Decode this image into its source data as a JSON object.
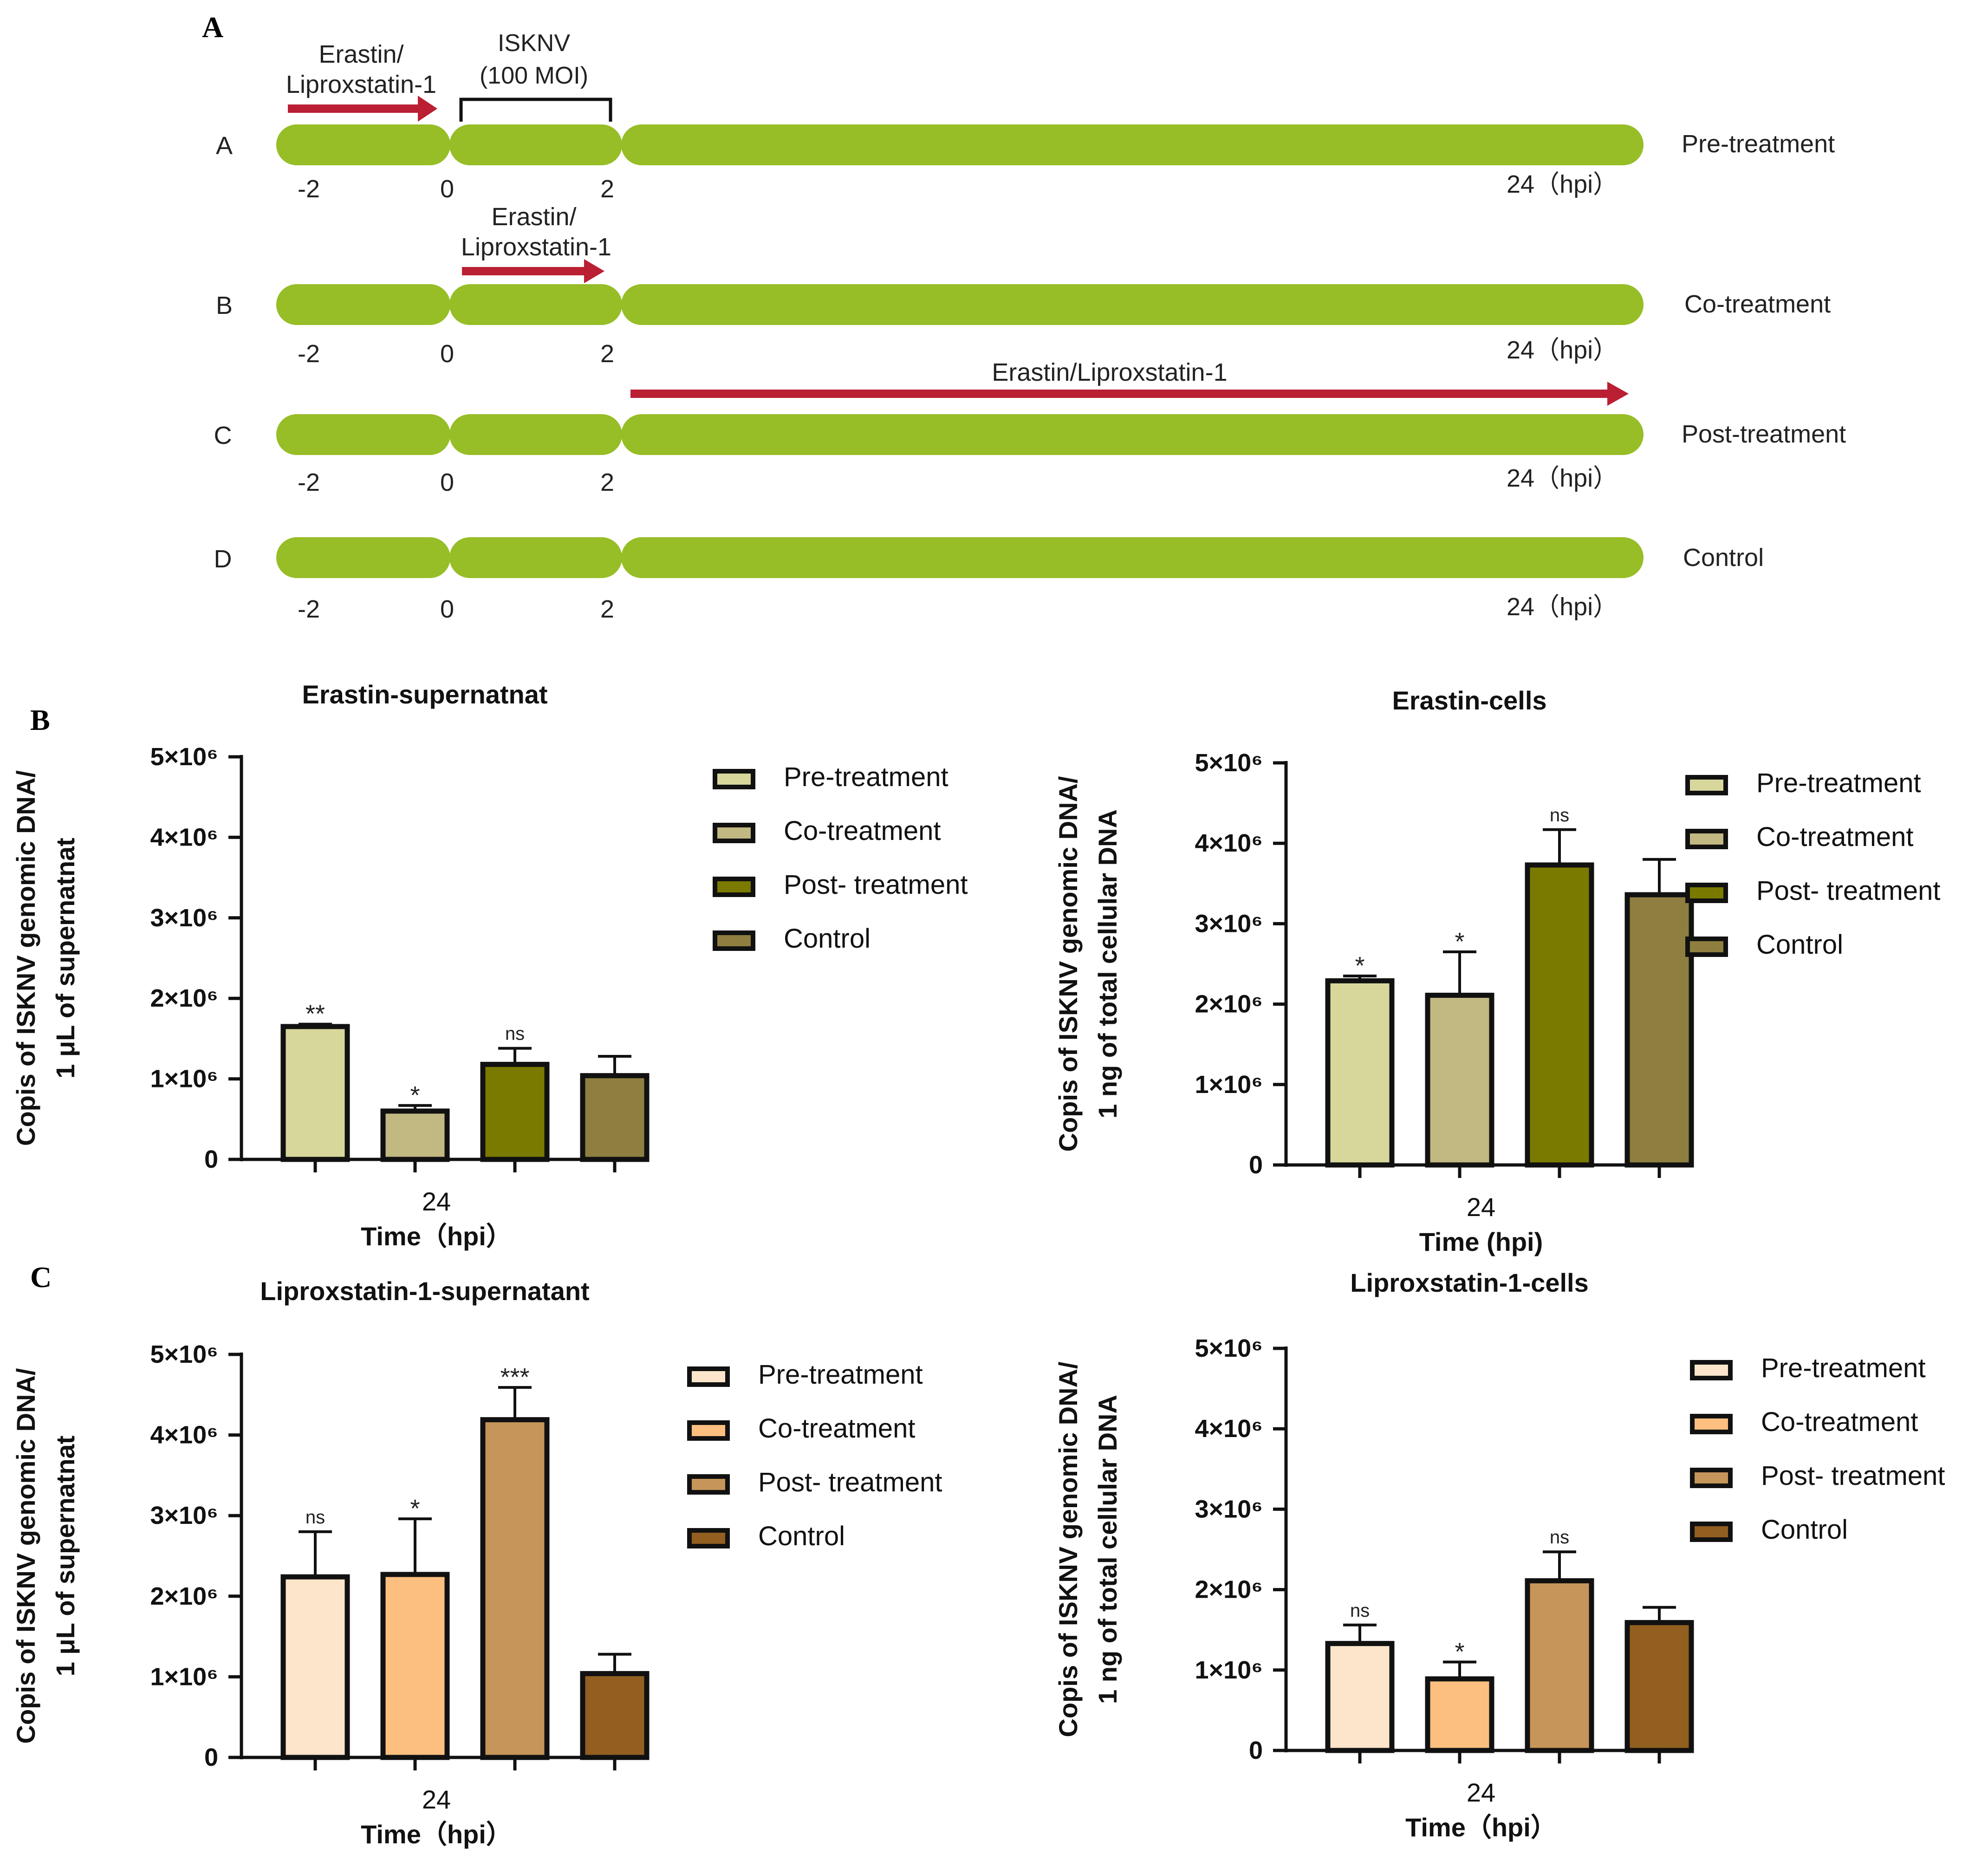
{
  "panel_labels": [
    "A",
    "B",
    "C"
  ],
  "schematic": {
    "rows": [
      {
        "letter": "A",
        "name": "Pre-treatment",
        "ticks": [
          "-2",
          "0",
          "2",
          "24（hpi）"
        ]
      },
      {
        "letter": "B",
        "name": "Co-treatment",
        "ticks": [
          "-2",
          "0",
          "2",
          "24（hpi）"
        ]
      },
      {
        "letter": "C",
        "name": "Post-treatment",
        "ticks": [
          "-2",
          "0",
          "2",
          "24（hpi）"
        ]
      },
      {
        "letter": "D",
        "name": "Control",
        "ticks": [
          "-2",
          "0",
          "2",
          "24（hpi）"
        ]
      }
    ],
    "drug_line1": "Erastin/",
    "drug_line2": "Liproxstatin-1",
    "drug_full": "Erastin/Liproxstatin-1",
    "virus_line1": "ISKNV",
    "virus_line2": "(100 MOI)",
    "colors": {
      "bar": "#97bd27",
      "arrow": "#ba1f33"
    }
  },
  "chart_data": [
    {
      "type": "bar",
      "title": "Erastin-supernatnat",
      "ylabel": [
        "Copis of ISKNV genomic DNA/",
        "1 μL of supernatnat"
      ],
      "xlabel": "Time（hpi）",
      "xtick": "24",
      "ylim": [
        0,
        5000000
      ],
      "yticks": [
        "0",
        "1×10⁶",
        "2×10⁶",
        "3×10⁶",
        "4×10⁶",
        "5×10⁶"
      ],
      "categories": [
        "Pre-treatment",
        "Co-treatment",
        "Post- treatment",
        "Control"
      ],
      "values": [
        1650000,
        600000,
        1180000,
        1040000
      ],
      "errors": [
        30000,
        70000,
        200000,
        240000
      ],
      "significance": [
        "**",
        "*",
        "ns",
        ""
      ],
      "colors": [
        "#d7d79c",
        "#c1b882",
        "#7b7a00",
        "#8e7f40"
      ]
    },
    {
      "type": "bar",
      "title": "Erastin-cells",
      "ylabel": [
        "Copis of ISKNV genomic DNA/",
        "1 ng of total cellular DNA"
      ],
      "xlabel": "Time (hpi)",
      "xtick": "24",
      "ylim": [
        0,
        5000000
      ],
      "yticks": [
        "0",
        "1×10⁶",
        "2×10⁶",
        "3×10⁶",
        "4×10⁶",
        "5×10⁶"
      ],
      "categories": [
        "Pre-treatment",
        "Co-treatment",
        "Post- treatment",
        "Control"
      ],
      "values": [
        2290000,
        2110000,
        3730000,
        3360000
      ],
      "errors": [
        60000,
        540000,
        440000,
        440000
      ],
      "significance": [
        "*",
        "*",
        "ns",
        ""
      ],
      "colors": [
        "#d7d79c",
        "#c1b882",
        "#7b7a00",
        "#8e7f40"
      ]
    },
    {
      "type": "bar",
      "title": "Liproxstatin-1-supernatant",
      "ylabel": [
        "Copis of ISKNV genomic DNA/",
        "1 μL of supernatnat"
      ],
      "xlabel": "Time（hpi）",
      "xtick": "24",
      "ylim": [
        0,
        5000000
      ],
      "yticks": [
        "0",
        "1×10⁶",
        "2×10⁶",
        "3×10⁶",
        "4×10⁶",
        "5×10⁶"
      ],
      "categories": [
        "Pre-treatment",
        "Co-treatment",
        "Post- treatment",
        "Control"
      ],
      "values": [
        2240000,
        2270000,
        4190000,
        1040000
      ],
      "errors": [
        560000,
        690000,
        400000,
        240000
      ],
      "significance": [
        "ns",
        "*",
        "***",
        ""
      ],
      "colors": [
        "#fce5cb",
        "#fcbf80",
        "#c6955a",
        "#925f20"
      ]
    },
    {
      "type": "bar",
      "title": "Liproxstatin-1-cells",
      "ylabel": [
        "Copis of ISKNV genomic DNA/",
        "1 ng of total cellular DNA"
      ],
      "xlabel": "Time（hpi）",
      "xtick": "24",
      "ylim": [
        0,
        5000000
      ],
      "yticks": [
        "0",
        "1×10⁶",
        "2×10⁶",
        "3×10⁶",
        "4×10⁶",
        "5×10⁶"
      ],
      "categories": [
        "Pre-treatment",
        "Co-treatment",
        "Post- treatment",
        "Control"
      ],
      "values": [
        1330000,
        890000,
        2110000,
        1590000
      ],
      "errors": [
        230000,
        210000,
        360000,
        190000
      ],
      "significance": [
        "ns",
        "*",
        "ns",
        ""
      ],
      "colors": [
        "#fce5cb",
        "#fcbf80",
        "#c6955a",
        "#925f20"
      ]
    }
  ]
}
